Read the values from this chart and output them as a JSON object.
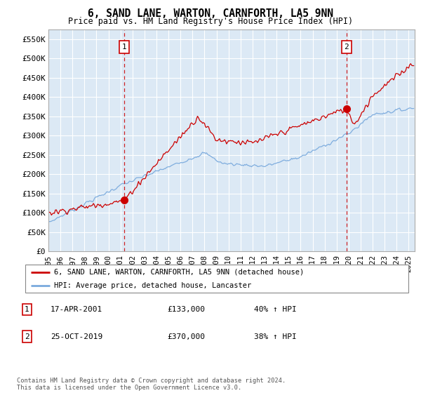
{
  "title": "6, SAND LANE, WARTON, CARNFORTH, LA5 9NN",
  "subtitle": "Price paid vs. HM Land Registry's House Price Index (HPI)",
  "fig_bg_color": "#ffffff",
  "plot_bg_color": "#dce9f5",
  "red_line_color": "#cc0000",
  "blue_line_color": "#7aaadd",
  "grid_color": "#ffffff",
  "marker1_date_num": 2001.3,
  "marker1_value": 133000,
  "marker2_date_num": 2019.82,
  "marker2_value": 370000,
  "legend_label_red": "6, SAND LANE, WARTON, CARNFORTH, LA5 9NN (detached house)",
  "legend_label_blue": "HPI: Average price, detached house, Lancaster",
  "footnote": "Contains HM Land Registry data © Crown copyright and database right 2024.\nThis data is licensed under the Open Government Licence v3.0.",
  "ylim": [
    0,
    575000
  ],
  "yticks": [
    0,
    50000,
    100000,
    150000,
    200000,
    250000,
    300000,
    350000,
    400000,
    450000,
    500000,
    550000
  ],
  "ytick_labels": [
    "£0",
    "£50K",
    "£100K",
    "£150K",
    "£200K",
    "£250K",
    "£300K",
    "£350K",
    "£400K",
    "£450K",
    "£500K",
    "£550K"
  ],
  "xlim_start": 1995.0,
  "xlim_end": 2025.5,
  "xticks": [
    1995,
    1996,
    1997,
    1998,
    1999,
    2000,
    2001,
    2002,
    2003,
    2004,
    2005,
    2006,
    2007,
    2008,
    2009,
    2010,
    2011,
    2012,
    2013,
    2014,
    2015,
    2016,
    2017,
    2018,
    2019,
    2020,
    2021,
    2022,
    2023,
    2024,
    2025
  ]
}
